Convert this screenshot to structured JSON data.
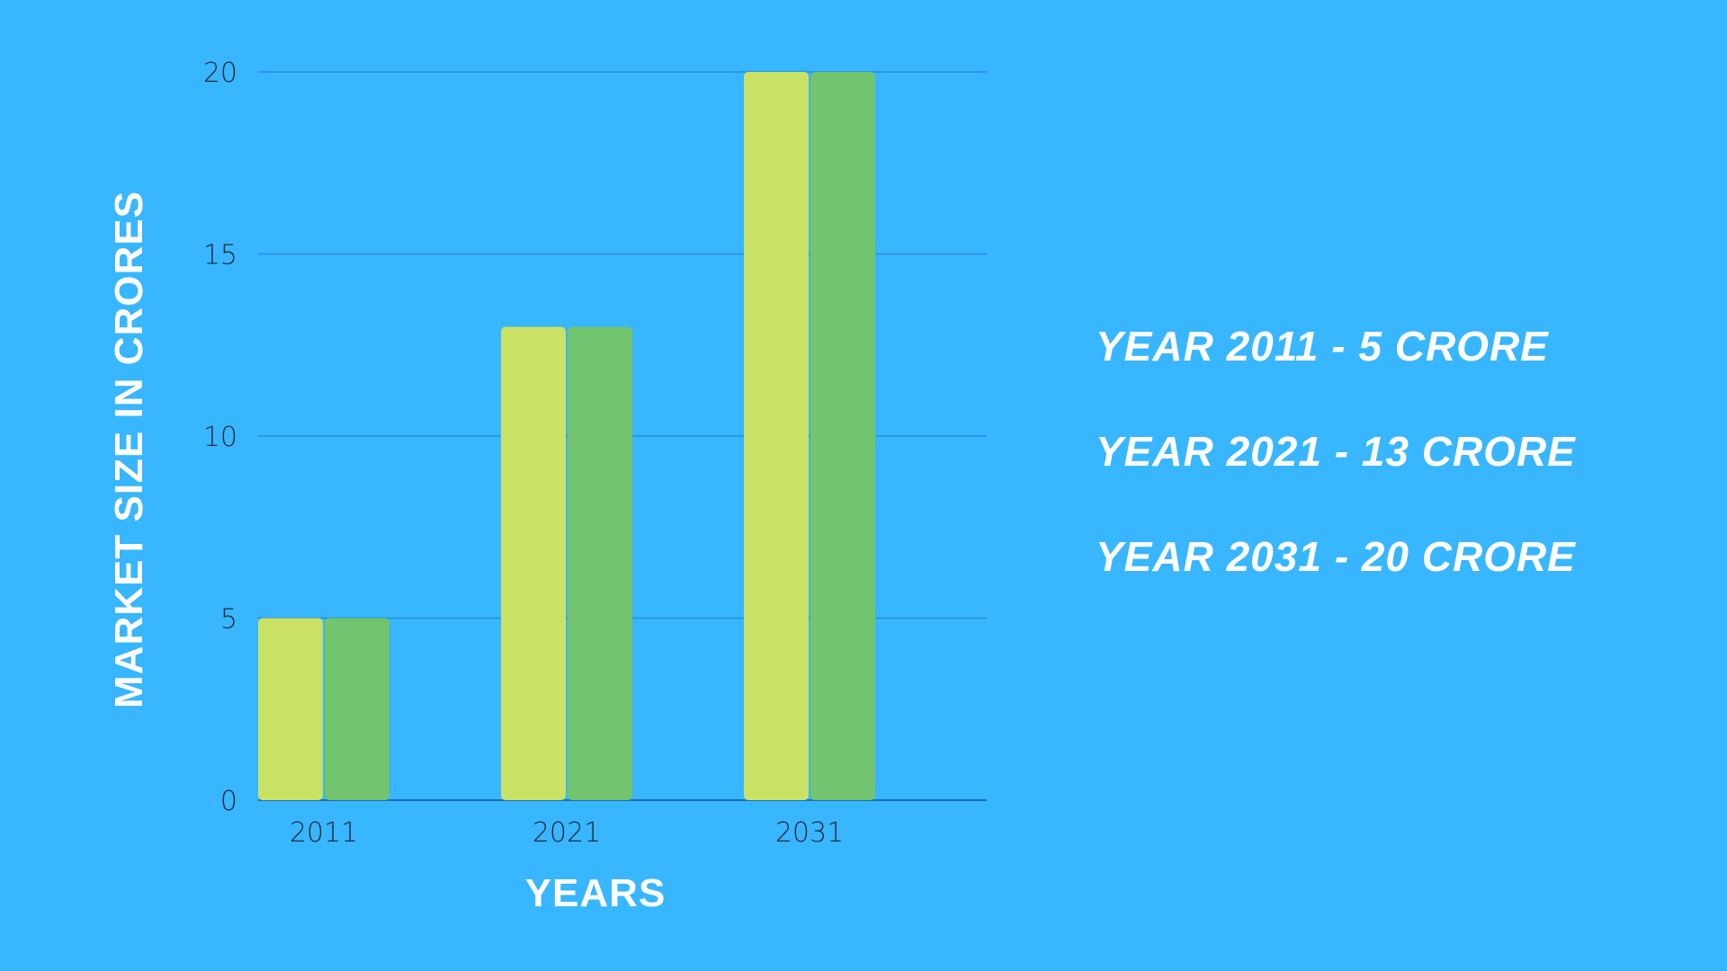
{
  "chart_data": {
    "type": "bar",
    "categories": [
      "2011",
      "2021",
      "2031"
    ],
    "series": [
      {
        "values": [
          5,
          13,
          20
        ],
        "color": "#c9e265"
      },
      {
        "values": [
          5,
          13,
          20
        ],
        "color": "#72c46e"
      }
    ],
    "ylim": [
      0,
      20
    ],
    "yticks": [
      "0",
      "5",
      "10",
      "15",
      "20"
    ],
    "xlabel": "YEARS",
    "ylabel": "MARKET SIZE IN CRORES",
    "grid": true,
    "gridline_color": "#2a8fd6",
    "annotations": [
      "YEAR 2011 - 5 CRORE",
      "YEAR 2021 - 13 CRORE",
      "YEAR 2031 - 20 CRORE"
    ]
  }
}
